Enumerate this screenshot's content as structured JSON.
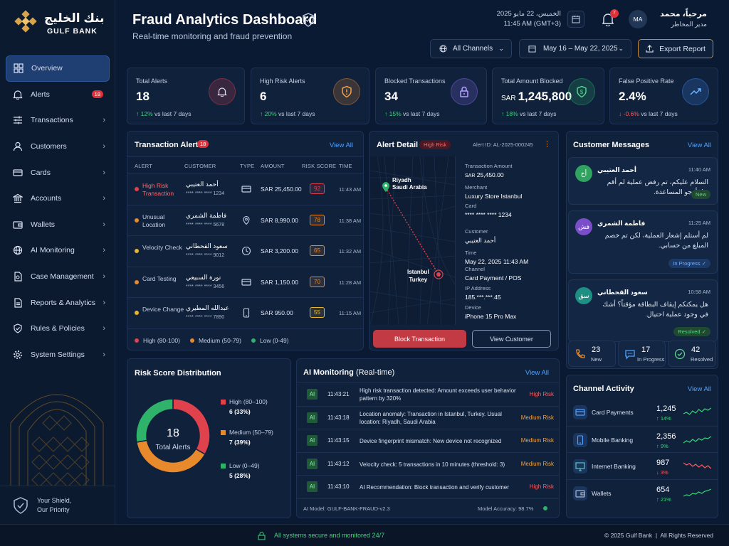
{
  "bank": {
    "name_ar": "بنك الخليج",
    "name_en": "GULF BANK"
  },
  "sidebar": {
    "items": [
      {
        "label": "Overview",
        "icon": "grid-icon",
        "active": true
      },
      {
        "label": "Alerts",
        "icon": "bell-icon",
        "badge": "18"
      },
      {
        "label": "Transactions",
        "icon": "sliders-icon"
      },
      {
        "label": "Customers",
        "icon": "user-icon"
      },
      {
        "label": "Cards",
        "icon": "card-icon"
      },
      {
        "label": "Accounts",
        "icon": "bank-icon"
      },
      {
        "label": "Wallets",
        "icon": "wallet-icon"
      },
      {
        "label": "AI Monitoring",
        "icon": "globe-icon"
      },
      {
        "label": "Case Management",
        "icon": "file-icon"
      },
      {
        "label": "Reports & Analytics",
        "icon": "report-icon"
      },
      {
        "label": "Rules & Policies",
        "icon": "shield-check-icon"
      },
      {
        "label": "System Settings",
        "icon": "gear-icon"
      }
    ],
    "tagline1": "Your Shield,",
    "tagline2": "Our Priority"
  },
  "header": {
    "title": "Fraud Analytics Dashboard",
    "subtitle": "Real-time monitoring and fraud prevention",
    "date_ar": "الخميس، 22 مايو 2025",
    "time": "11:45 AM (GMT+3)",
    "notif_count": "7",
    "avatar": "MA",
    "greeting": "مرحباً، محمد",
    "role": "مدير المخاطر",
    "channels": "All Channels",
    "range": "May 16 – May 22, 2025",
    "export": "Export Report"
  },
  "kpis": [
    {
      "label": "Total Alerts",
      "value": "18",
      "change": "12%",
      "dir": "up",
      "suffix": "vs last 7 days",
      "icon": "bell-icon",
      "color": "#e0424d"
    },
    {
      "label": "High Risk Alerts",
      "value": "6",
      "change": "20%",
      "dir": "up",
      "suffix": "vs last 7 days",
      "icon": "warning-shield-icon",
      "color": "#e8892b"
    },
    {
      "label": "Blocked Transactions",
      "value": "34",
      "change": "15%",
      "dir": "up",
      "suffix": "vs last 7 days",
      "icon": "lock-icon",
      "color": "#8a6cf0"
    },
    {
      "label": "Total Amount Blocked",
      "prefix": "SAR",
      "value": "1,245,800",
      "change": "18%",
      "dir": "up",
      "suffix": "vs last 7 days",
      "icon": "dollar-shield-icon",
      "color": "#2fb36a"
    },
    {
      "label": "False Positive Rate",
      "value": "2.4%",
      "change": "-0.6%",
      "dir": "down",
      "suffix": "vs last 7 days",
      "icon": "trend-icon",
      "color": "#3b8cf0"
    }
  ],
  "alerts": {
    "title": "Transaction Alerts",
    "count": "18",
    "view_all": "View All",
    "headers": [
      "ALERT",
      "CUSTOMER",
      "TYPE",
      "AMOUNT",
      "RISK SCORE",
      "TIME"
    ],
    "rows": [
      {
        "alert": "High Risk Transaction",
        "color": "#e0424d",
        "name": "أحمد العتيبي",
        "card": "**** **** **** 1234",
        "type": "card-icon",
        "amount": "SAR 25,450.00",
        "score": "92",
        "time": "11:43 AM"
      },
      {
        "alert": "Unusual Location",
        "color": "#e8892b",
        "name": "فاطمة الشمري",
        "card": "**** **** **** 5678",
        "type": "pin-icon",
        "amount": "SAR 8,990.00",
        "score": "78",
        "time": "11:38 AM"
      },
      {
        "alert": "Velocity Check",
        "color": "#e8b52b",
        "name": "سعود القحطاني",
        "card": "**** **** **** 9012",
        "type": "clock-icon",
        "amount": "SAR 3,200.00",
        "score": "65",
        "time": "11:32 AM"
      },
      {
        "alert": "Card Testing",
        "color": "#e8892b",
        "name": "نورة السبيعي",
        "card": "**** **** **** 3456",
        "type": "card-icon",
        "amount": "SAR 1,150.00",
        "score": "70",
        "time": "11:28 AM"
      },
      {
        "alert": "Device Change",
        "color": "#e8b52b",
        "name": "عبدالله المطيري",
        "card": "**** **** **** 7890",
        "type": "phone-icon",
        "amount": "SAR 950.00",
        "score": "55",
        "time": "11:15 AM"
      }
    ],
    "legend": [
      "High (80-100)",
      "Medium (50-79)",
      "Low (0-49)"
    ]
  },
  "detail": {
    "title": "Alert Detail",
    "risk": "High Risk",
    "alert_id": "Alert ID: AL-2025-000245",
    "from": "Riyadh",
    "from2": "Saudi Arabia",
    "to": "Istanbul",
    "to2": "Turkey",
    "fields": [
      {
        "label": "Transaction Amount",
        "prefix": "SAR",
        "value": "25,450.00"
      },
      {
        "label": "Merchant",
        "value": "Luxury Store Istanbul"
      },
      {
        "label": "Card",
        "value": "**** **** **** 1234"
      },
      {
        "label": "Customer",
        "value": "أحمد العتيبي"
      },
      {
        "label": "Time",
        "value": "May 22, 2025 11:43 AM"
      },
      {
        "label": "Channel",
        "value": "Card Payment / POS"
      },
      {
        "label": "IP Address",
        "value": "185.***.***.45"
      },
      {
        "label": "Device",
        "value": "iPhone 15 Pro Max"
      }
    ],
    "block": "Block Transaction",
    "view": "View Customer"
  },
  "messages": {
    "title": "Customer Messages",
    "view_all": "View All",
    "items": [
      {
        "name": "أحمد العتيبي",
        "initials": "أح",
        "time": "11:40 AM",
        "text": "السلام عليكم، تم رفض عملية لم أقم بها، أرجو المساعدة.",
        "status": "New",
        "color": "#2fa35f"
      },
      {
        "name": "فاطمة الشمري",
        "initials": "فش",
        "time": "11:25 AM",
        "text": "لم أستلم إشعار العملية، لكن تم خصم المبلغ من حسابي.",
        "status": "In Progress",
        "color": "#7b4ec9"
      },
      {
        "name": "سعود القحطاني",
        "initials": "سق",
        "time": "10:58 AM",
        "text": "هل يمكنكم إيقاف البطاقة مؤقتاً؟ أشك في وجود عملية احتيال.",
        "status": "Resolved",
        "color": "#1d8f83"
      }
    ],
    "stats": [
      {
        "num": "23",
        "label": "New"
      },
      {
        "num": "17",
        "label": "In Progress"
      },
      {
        "num": "42",
        "label": "Resolved"
      }
    ]
  },
  "risk_dist": {
    "title": "Risk Score Distribution",
    "total": "18",
    "total_label": "Total Alerts",
    "legend": [
      {
        "label": "High (80–100)",
        "value": "6 (33%)",
        "color": "#e0424d"
      },
      {
        "label": "Medium (50–79)",
        "value": "7 (39%)",
        "color": "#e8892b"
      },
      {
        "label": "Low (0–49)",
        "value": "5 (28%)",
        "color": "#2fb36a"
      }
    ]
  },
  "chart_data": {
    "type": "pie",
    "categories": [
      "High (80–100)",
      "Medium (50–79)",
      "Low (0–49)"
    ],
    "values": [
      6,
      7,
      5
    ],
    "colors": [
      "#e0424d",
      "#e8892b",
      "#2fb36a"
    ]
  },
  "ai": {
    "title": "AI Monitoring",
    "title2": "(Real-time)",
    "view_all": "View All",
    "rows": [
      {
        "time": "11:43:21",
        "text": "High risk transaction detected: Amount exceeds user behavior pattern by 320%",
        "risk": "High Risk"
      },
      {
        "time": "11:43:18",
        "text": "Location anomaly: Transaction in Istanbul, Turkey. Usual location: Riyadh, Saudi Arabia",
        "risk": "Medium Risk"
      },
      {
        "time": "11:43:15",
        "text": "Device fingerprint mismatch: New device not recognized",
        "risk": "Medium Risk"
      },
      {
        "time": "11:43:12",
        "text": "Velocity check: 5 transactions in 10 minutes (threshold: 3)",
        "risk": "Medium Risk"
      },
      {
        "time": "11:43:10",
        "text": "AI Recommendation: Block transaction and verify customer",
        "risk": "High Risk"
      }
    ],
    "model": "AI Model: GULF-BANK-FRAUD-v2.3",
    "accuracy": "Model Accuracy: 98.7%"
  },
  "channels": {
    "title": "Channel Activity",
    "view_all": "View All",
    "items": [
      {
        "name": "Card Payments",
        "value": "1,245",
        "change": "14%",
        "dir": "up",
        "icon": "card-icon"
      },
      {
        "name": "Mobile Banking",
        "value": "2,356",
        "change": "9%",
        "dir": "up",
        "icon": "phone-icon"
      },
      {
        "name": "Internet Banking",
        "value": "987",
        "change": "3%",
        "dir": "down",
        "icon": "monitor-icon"
      },
      {
        "name": "Wallets",
        "value": "654",
        "change": "21%",
        "dir": "up",
        "icon": "wallet-icon"
      }
    ]
  },
  "footer": {
    "status": "All systems secure and monitored 24/7",
    "copyright": "© 2025 Gulf Bank  |  All Rights Reserved"
  }
}
